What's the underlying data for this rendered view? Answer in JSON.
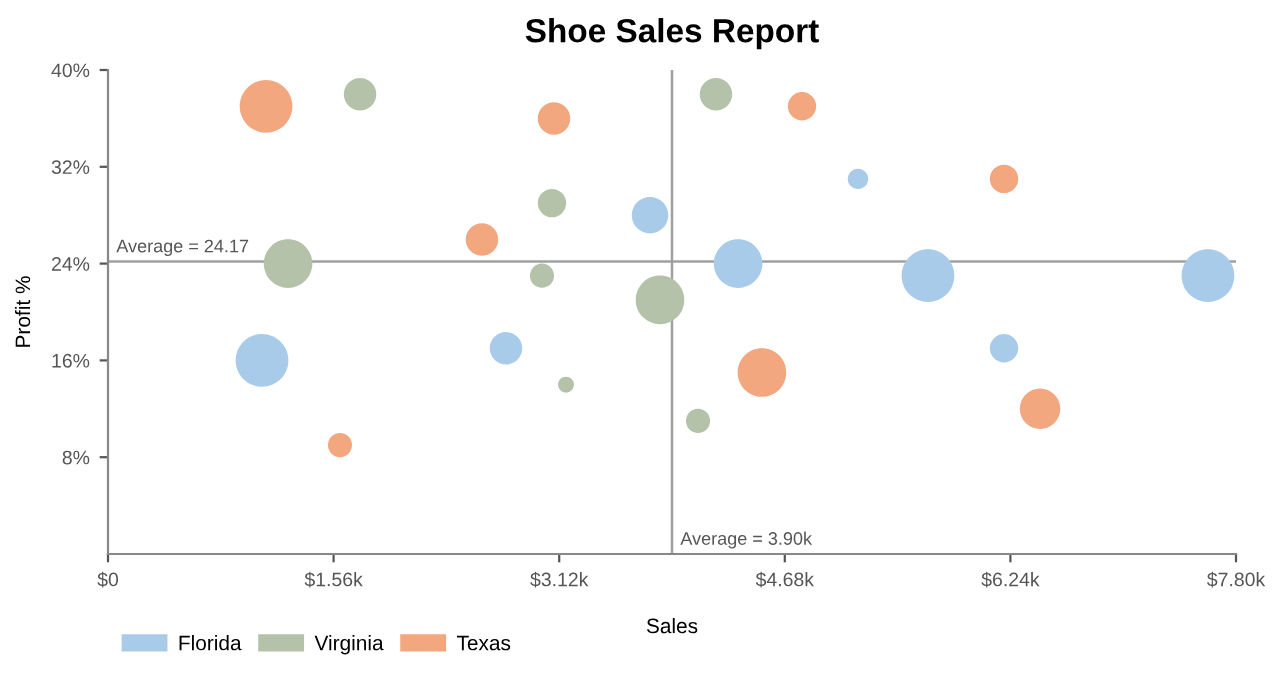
{
  "chart_data": {
    "type": "bubble",
    "title": "Shoe Sales Report",
    "xlabel": "Sales",
    "ylabel": "Profit %",
    "xlim": [
      0,
      7800
    ],
    "xticks": [
      {
        "value": 0,
        "label": "$0"
      },
      {
        "value": 1560,
        "label": "$1.56k"
      },
      {
        "value": 3120,
        "label": "$3.12k"
      },
      {
        "value": 4680,
        "label": "$4.68k"
      },
      {
        "value": 6240,
        "label": "$6.24k"
      },
      {
        "value": 7800,
        "label": "$7.80k"
      }
    ],
    "ylim": [
      0,
      40
    ],
    "yticks": [
      {
        "value": 8,
        "label": "8%"
      },
      {
        "value": 16,
        "label": "16%"
      },
      {
        "value": 24,
        "label": "24%"
      },
      {
        "value": 32,
        "label": "32%"
      },
      {
        "value": 40,
        "label": "40%"
      }
    ],
    "grid": false,
    "legend": "bottom left",
    "ref_lines": [
      {
        "axis": "y",
        "value": 24.17,
        "label": "Average = 24.17",
        "color": "#a0a0a0"
      },
      {
        "axis": "x",
        "value": 3900,
        "label": "Average = 3.90k",
        "color": "#a0a0a0"
      }
    ],
    "series": [
      {
        "name": "Florida",
        "color": "#a9cbea",
        "x": [
          1065,
          2752,
          3748,
          4357,
          5186,
          5670,
          6196,
          7606
        ],
        "values": [
          16,
          17,
          28,
          24,
          31,
          23,
          17,
          23
        ],
        "sizes": [
          1,
          0.38,
          0.48,
          0.85,
          0.15,
          1,
          0.29,
          1
        ]
      },
      {
        "name": "Virginia",
        "color": "#b4c2a9",
        "x": [
          1743,
          1245,
          3070,
          3001,
          3817,
          3167,
          4204,
          4080
        ],
        "values": [
          38,
          24,
          29,
          23,
          21,
          14,
          38,
          11
        ],
        "sizes": [
          0.38,
          0.85,
          0.29,
          0.21,
          0.85,
          0.09,
          0.38,
          0.21
        ]
      },
      {
        "name": "Texas",
        "color": "#f2a77f",
        "x": [
          1093,
          3084,
          2586,
          1604,
          4799,
          4522,
          6196,
          6445
        ],
        "values": [
          37,
          36,
          26,
          9,
          37,
          15,
          31,
          12
        ],
        "sizes": [
          1,
          0.38,
          0.38,
          0.21,
          0.29,
          0.85,
          0.29,
          0.59
        ]
      }
    ]
  }
}
